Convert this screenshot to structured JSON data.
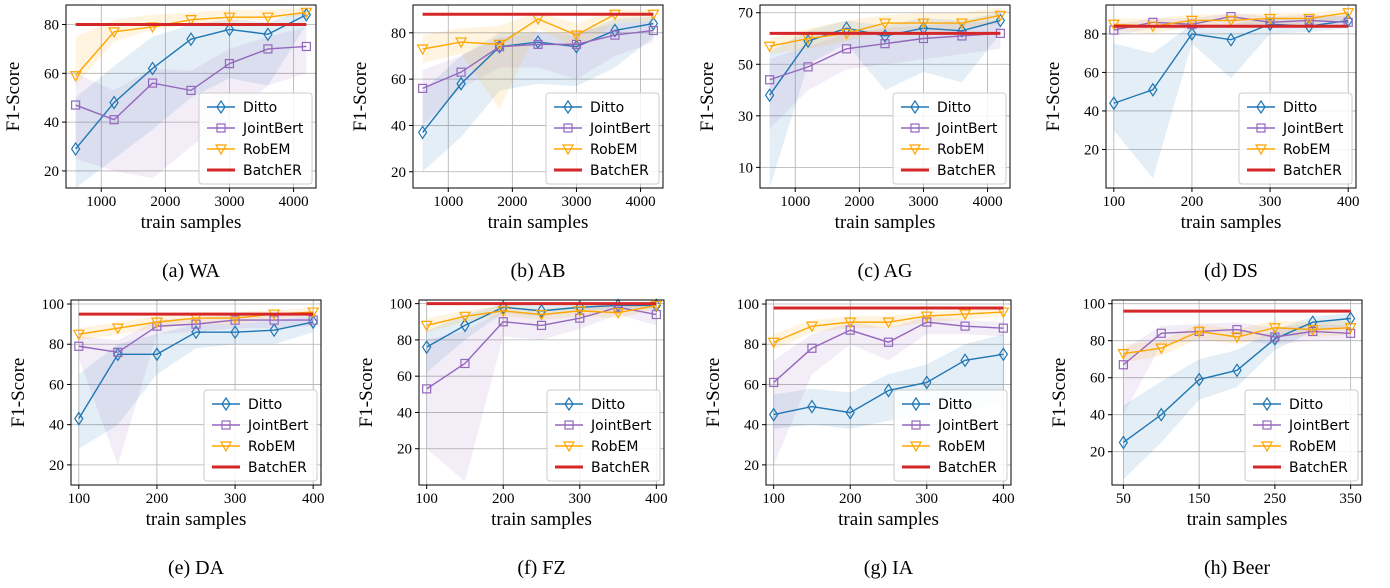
{
  "legend_series": [
    "Ditto",
    "JointBert",
    "RobEM",
    "BatchER"
  ],
  "colors": {
    "Ditto": "#1f77b4",
    "JointBert": "#9467bd",
    "RobEM": "#ffa500",
    "BatchER": "#d62728",
    "grid": "#b0b0b0",
    "axis": "#000000"
  },
  "chart_data": [
    {
      "type": "line",
      "caption": "(a) WA",
      "xlabel": "train samples",
      "ylabel": "F1-Score",
      "xlim": [
        450,
        4350
      ],
      "ylim": [
        13,
        88
      ],
      "xticks": [
        1000,
        2000,
        3000,
        4000
      ],
      "yticks": [
        20,
        40,
        60,
        80
      ],
      "x": [
        600,
        1200,
        1800,
        2400,
        3000,
        3600,
        4200
      ],
      "series": [
        {
          "name": "Ditto",
          "values": [
            29,
            48,
            62,
            74,
            78,
            76,
            84
          ],
          "band_lower": [
            13,
            25,
            37,
            50,
            58,
            55,
            80
          ],
          "band_upper": [
            50,
            63,
            75,
            80,
            82,
            81,
            86
          ]
        },
        {
          "name": "JointBert",
          "values": [
            47,
            41,
            56,
            53,
            64,
            70,
            71
          ],
          "band_lower": [
            25,
            20,
            17,
            30,
            41,
            55,
            60
          ],
          "band_upper": [
            60,
            53,
            62,
            61,
            70,
            75,
            79
          ]
        },
        {
          "name": "RobEM",
          "values": [
            59,
            77,
            79,
            82,
            83,
            83,
            85
          ],
          "band_lower": [
            55,
            73,
            78,
            80,
            81,
            82,
            84
          ],
          "band_upper": [
            75,
            82,
            84,
            85,
            86,
            86,
            87
          ]
        },
        {
          "name": "BatchER",
          "values": [
            80,
            80,
            80,
            80,
            80,
            80,
            80
          ]
        }
      ]
    },
    {
      "type": "line",
      "caption": "(b) AB",
      "xlabel": "train samples",
      "ylabel": "F1-Score",
      "xlim": [
        450,
        4350
      ],
      "ylim": [
        13,
        92
      ],
      "xticks": [
        1000,
        2000,
        3000,
        4000
      ],
      "yticks": [
        20,
        40,
        60,
        80
      ],
      "x": [
        600,
        1200,
        1800,
        2400,
        3000,
        3600,
        4200
      ],
      "series": [
        {
          "name": "Ditto",
          "values": [
            37,
            58,
            74,
            76,
            74,
            81,
            84
          ],
          "band_lower": [
            20,
            35,
            55,
            58,
            57,
            65,
            78
          ],
          "band_upper": [
            55,
            70,
            80,
            80,
            79,
            86,
            87
          ]
        },
        {
          "name": "JointBert",
          "values": [
            56,
            63,
            74,
            75,
            75,
            79,
            81
          ],
          "band_lower": [
            40,
            56,
            65,
            65,
            60,
            70,
            76
          ],
          "band_upper": [
            64,
            70,
            78,
            80,
            80,
            84,
            85
          ]
        },
        {
          "name": "RobEM",
          "values": [
            73,
            76,
            75,
            86,
            79,
            88,
            88
          ],
          "band_lower": [
            67,
            71,
            47,
            82,
            73,
            84,
            85
          ],
          "band_upper": [
            79,
            82,
            83,
            89,
            84,
            90,
            90
          ]
        },
        {
          "name": "BatchER",
          "values": [
            88,
            88,
            88,
            88,
            88,
            88,
            88
          ]
        }
      ]
    },
    {
      "type": "line",
      "caption": "(c) AG",
      "xlabel": "train samples",
      "ylabel": "F1-Score",
      "xlim": [
        450,
        4350
      ],
      "ylim": [
        2,
        73
      ],
      "xticks": [
        1000,
        2000,
        3000,
        4000
      ],
      "yticks": [
        10,
        30,
        50,
        70
      ],
      "x": [
        600,
        1200,
        1800,
        2400,
        3000,
        3600,
        4200
      ],
      "series": [
        {
          "name": "Ditto",
          "values": [
            38,
            59,
            64,
            61,
            64,
            63,
            67
          ],
          "band_lower": [
            2,
            50,
            58,
            40,
            47,
            43,
            62
          ],
          "band_upper": [
            55,
            63,
            67,
            65,
            68,
            67,
            70
          ]
        },
        {
          "name": "JointBert",
          "values": [
            44,
            49,
            56,
            58,
            60,
            61,
            62
          ],
          "band_lower": [
            25,
            40,
            48,
            50,
            52,
            54,
            56
          ],
          "band_upper": [
            52,
            57,
            62,
            64,
            65,
            66,
            67
          ]
        },
        {
          "name": "RobEM",
          "values": [
            57,
            60,
            62,
            66,
            66,
            66,
            69
          ],
          "band_lower": [
            54,
            56,
            59,
            63,
            63,
            63,
            66
          ],
          "band_upper": [
            60,
            64,
            67,
            69,
            70,
            70,
            72
          ]
        },
        {
          "name": "BatchER",
          "values": [
            62,
            62,
            62,
            62,
            62,
            62,
            62
          ]
        }
      ]
    },
    {
      "type": "line",
      "caption": "(d) DS",
      "xlabel": "train samples",
      "ylabel": "F1-Score",
      "xlim": [
        90,
        410
      ],
      "ylim": [
        0,
        95
      ],
      "xticks": [
        100,
        200,
        300,
        400
      ],
      "yticks": [
        20,
        40,
        60,
        80
      ],
      "x": [
        100,
        150,
        200,
        250,
        300,
        350,
        400
      ],
      "series": [
        {
          "name": "Ditto",
          "values": [
            44,
            51,
            80,
            77,
            85,
            84,
            87
          ],
          "band_lower": [
            30,
            5,
            75,
            57,
            80,
            81,
            83
          ],
          "band_upper": [
            75,
            70,
            85,
            85,
            88,
            88,
            90
          ]
        },
        {
          "name": "JointBert",
          "values": [
            82,
            86,
            85,
            89,
            86,
            87,
            86
          ],
          "band_lower": [
            79,
            83,
            82,
            85,
            83,
            85,
            84
          ],
          "band_upper": [
            85,
            88,
            88,
            91,
            89,
            90,
            89
          ]
        },
        {
          "name": "RobEM",
          "values": [
            85,
            84,
            87,
            87,
            88,
            88,
            91
          ],
          "band_lower": [
            82,
            80,
            84,
            84,
            85,
            85,
            88
          ],
          "band_upper": [
            88,
            88,
            90,
            90,
            91,
            91,
            93
          ]
        },
        {
          "name": "BatchER",
          "values": [
            84,
            84,
            84,
            84,
            84,
            84,
            84
          ]
        }
      ]
    },
    {
      "type": "line",
      "caption": "(e) DA",
      "xlabel": "train samples",
      "ylabel": "F1-Score",
      "xlim": [
        90,
        410
      ],
      "ylim": [
        10,
        102
      ],
      "xticks": [
        100,
        200,
        300,
        400
      ],
      "yticks": [
        20,
        40,
        60,
        80,
        100
      ],
      "x": [
        100,
        150,
        200,
        250,
        300,
        350,
        400
      ],
      "series": [
        {
          "name": "Ditto",
          "values": [
            43,
            75,
            75,
            86,
            86,
            87,
            91
          ],
          "band_lower": [
            28,
            40,
            65,
            78,
            80,
            80,
            86
          ],
          "band_upper": [
            65,
            80,
            85,
            90,
            90,
            92,
            94
          ]
        },
        {
          "name": "JointBert",
          "values": [
            79,
            76,
            89,
            90,
            92,
            92,
            92
          ],
          "band_lower": [
            73,
            20,
            85,
            86,
            88,
            88,
            89
          ],
          "band_upper": [
            84,
            82,
            92,
            93,
            95,
            95,
            95
          ]
        },
        {
          "name": "RobEM",
          "values": [
            85,
            88,
            91,
            93,
            93,
            95,
            96
          ],
          "band_lower": [
            82,
            85,
            88,
            90,
            90,
            93,
            94
          ],
          "band_upper": [
            88,
            91,
            94,
            96,
            96,
            97,
            98
          ]
        },
        {
          "name": "BatchER",
          "values": [
            95,
            95,
            95,
            95,
            95,
            95,
            95
          ]
        }
      ]
    },
    {
      "type": "line",
      "caption": "(f) FZ",
      "xlabel": "train samples",
      "ylabel": "F1-Score",
      "xlim": [
        90,
        410
      ],
      "ylim": [
        0,
        102
      ],
      "xticks": [
        100,
        200,
        300,
        400
      ],
      "yticks": [
        20,
        40,
        60,
        80,
        100
      ],
      "x": [
        100,
        150,
        200,
        250,
        300,
        350,
        400
      ],
      "series": [
        {
          "name": "Ditto",
          "values": [
            76,
            88,
            98,
            96,
            98,
            99,
            99
          ],
          "band_lower": [
            62,
            80,
            95,
            93,
            96,
            97,
            97
          ],
          "band_upper": [
            85,
            94,
            100,
            99,
            100,
            100,
            100
          ]
        },
        {
          "name": "JointBert",
          "values": [
            53,
            67,
            90,
            88,
            92,
            98,
            94
          ],
          "band_lower": [
            20,
            2,
            82,
            80,
            86,
            94,
            88
          ],
          "band_upper": [
            80,
            85,
            96,
            94,
            97,
            100,
            98
          ]
        },
        {
          "name": "RobEM",
          "values": [
            88,
            93,
            96,
            94,
            96,
            95,
            99
          ],
          "band_lower": [
            84,
            90,
            93,
            91,
            93,
            92,
            97
          ],
          "band_upper": [
            92,
            96,
            99,
            97,
            99,
            98,
            100
          ]
        },
        {
          "name": "BatchER",
          "values": [
            100,
            100,
            100,
            100,
            100,
            100,
            100
          ]
        }
      ]
    },
    {
      "type": "line",
      "caption": "(g) IA",
      "xlabel": "train samples",
      "ylabel": "F1-Score",
      "xlim": [
        90,
        410
      ],
      "ylim": [
        10,
        102
      ],
      "xticks": [
        100,
        200,
        300,
        400
      ],
      "yticks": [
        20,
        40,
        60,
        80,
        100
      ],
      "x": [
        100,
        150,
        200,
        250,
        300,
        350,
        400
      ],
      "series": [
        {
          "name": "Ditto",
          "values": [
            45,
            49,
            46,
            57,
            61,
            72,
            75
          ],
          "band_lower": [
            38,
            40,
            38,
            42,
            45,
            48,
            50
          ],
          "band_upper": [
            55,
            58,
            56,
            65,
            70,
            80,
            85
          ]
        },
        {
          "name": "JointBert",
          "values": [
            61,
            78,
            87,
            81,
            91,
            89,
            88
          ],
          "band_lower": [
            20,
            65,
            80,
            72,
            85,
            85,
            84
          ],
          "band_upper": [
            72,
            85,
            91,
            88,
            94,
            92,
            91
          ]
        },
        {
          "name": "RobEM",
          "values": [
            81,
            89,
            91,
            91,
            94,
            95,
            96
          ],
          "band_lower": [
            77,
            86,
            88,
            88,
            91,
            92,
            94
          ],
          "band_upper": [
            85,
            92,
            94,
            94,
            96,
            97,
            98
          ]
        },
        {
          "name": "BatchER",
          "values": [
            98,
            98,
            98,
            98,
            98,
            98,
            98
          ]
        }
      ]
    },
    {
      "type": "line",
      "caption": "(h) Beer",
      "xlabel": "train samples",
      "ylabel": "F1-Score",
      "xlim": [
        35,
        365
      ],
      "ylim": [
        2,
        102
      ],
      "xticks": [
        50,
        150,
        250,
        350
      ],
      "yticks": [
        20,
        40,
        60,
        80,
        100
      ],
      "x": [
        50,
        100,
        150,
        200,
        250,
        300,
        350
      ],
      "series": [
        {
          "name": "Ditto",
          "values": [
            25,
            40,
            59,
            64,
            81,
            90,
            92
          ],
          "band_lower": [
            5,
            25,
            48,
            55,
            75,
            85,
            88
          ],
          "band_upper": [
            45,
            58,
            70,
            75,
            86,
            93,
            95
          ]
        },
        {
          "name": "JointBert",
          "values": [
            67,
            84,
            85,
            86,
            82,
            85,
            84
          ],
          "band_lower": [
            40,
            78,
            80,
            80,
            78,
            80,
            80
          ],
          "band_upper": [
            75,
            88,
            89,
            90,
            87,
            89,
            88
          ]
        },
        {
          "name": "RobEM",
          "values": [
            73,
            76,
            85,
            82,
            87,
            86,
            87
          ],
          "band_lower": [
            68,
            72,
            81,
            78,
            83,
            82,
            83
          ],
          "band_upper": [
            78,
            80,
            89,
            86,
            91,
            90,
            91
          ]
        },
        {
          "name": "BatchER",
          "values": [
            96,
            96,
            96,
            96,
            96,
            96,
            96
          ]
        }
      ]
    }
  ]
}
